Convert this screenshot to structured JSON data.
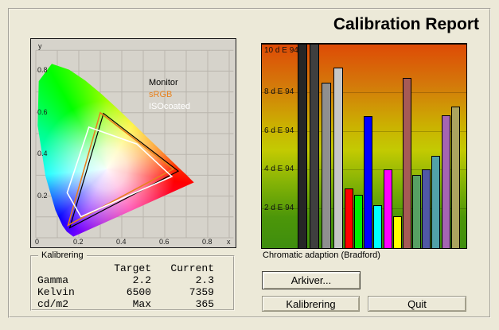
{
  "window": {
    "title": "Calibration Report"
  },
  "cie_diagram": {
    "x_axis_letter": "x",
    "y_axis_letter": "y",
    "origin_label": "0",
    "x_ticks": [
      "0.2",
      "0.4",
      "0.6",
      "0.8"
    ],
    "y_ticks": [
      "0.2",
      "0.4",
      "0.6",
      "0.8"
    ],
    "legend": [
      {
        "label": "Monitor",
        "color": "#000000"
      },
      {
        "label": "sRGB",
        "color": "#e8821e"
      },
      {
        "label": "ISOcoated",
        "color": "#ffffff"
      }
    ]
  },
  "chart_data": [
    {
      "type": "area",
      "title": "CIE 1931 xy chromaticity diagram with device gamuts",
      "xlabel": "x",
      "ylabel": "y",
      "xlim": [
        0,
        0.9
      ],
      "ylim": [
        0,
        0.9
      ],
      "xticks": [
        0.2,
        0.4,
        0.6,
        0.8
      ],
      "yticks": [
        0.2,
        0.4,
        0.6,
        0.8
      ],
      "grid": true,
      "legend_position": "upper-right",
      "series": [
        {
          "name": "Monitor",
          "color": "#000000",
          "stroke_width": 1.2,
          "points": [
            [
              0.315,
              0.597
            ],
            [
              0.663,
              0.32
            ],
            [
              0.158,
              0.048
            ]
          ]
        },
        {
          "name": "sRGB",
          "color": "#e8821e",
          "stroke_width": 1.6,
          "points": [
            [
              0.3,
              0.6
            ],
            [
              0.64,
              0.33
            ],
            [
              0.15,
              0.06
            ]
          ]
        },
        {
          "name": "ISOcoated",
          "color": "#ffffff",
          "stroke_width": 1.6,
          "points": [
            [
              0.247,
              0.531
            ],
            [
              0.47,
              0.45
            ],
            [
              0.633,
              0.294
            ],
            [
              0.21,
              0.101
            ],
            [
              0.146,
              0.216
            ]
          ]
        }
      ]
    },
    {
      "type": "bar",
      "ylabel": "d E 94",
      "ylim": [
        0,
        10.6
      ],
      "grid": true,
      "ytick_values": [
        10,
        8,
        6,
        4,
        2
      ],
      "ytick_labels": [
        "10 d E 94",
        "8 d E 94",
        "6 d E 94",
        "4 d E 94",
        "2 d E 94"
      ],
      "caption": "Chromatic adaption (Bradford)",
      "bars": [
        {
          "name": "black",
          "color": "#262626",
          "value": 10.6
        },
        {
          "name": "dark-gray",
          "color": "#3f3f3f",
          "value": 10.6
        },
        {
          "name": "gray",
          "color": "#8f8f8f",
          "value": 8.6
        },
        {
          "name": "light-gray",
          "color": "#c6c6c6",
          "value": 9.4
        },
        {
          "name": "red",
          "color": "#ff0000",
          "value": 3.1
        },
        {
          "name": "green",
          "color": "#00ee00",
          "value": 2.75
        },
        {
          "name": "blue",
          "color": "#0000ff",
          "value": 6.85
        },
        {
          "name": "cyan",
          "color": "#00ffff",
          "value": 2.25
        },
        {
          "name": "magenta",
          "color": "#ff00ff",
          "value": 4.1
        },
        {
          "name": "yellow",
          "color": "#ffff00",
          "value": 1.65
        },
        {
          "name": "brown",
          "color": "#a65a55",
          "value": 8.85
        },
        {
          "name": "sea-green",
          "color": "#57a063",
          "value": 3.8
        },
        {
          "name": "slate-blue",
          "color": "#5058a5",
          "value": 4.1
        },
        {
          "name": "cadet-blue",
          "color": "#51a1a8",
          "value": 4.8
        },
        {
          "name": "orchid",
          "color": "#a565b2",
          "value": 6.9
        },
        {
          "name": "khaki",
          "color": "#aba45e",
          "value": 7.35
        }
      ]
    }
  ],
  "calibration": {
    "group_label": "Kalibrering",
    "columns": [
      "Target",
      "Current"
    ],
    "rows": [
      {
        "label": "Gamma",
        "target": "2.2",
        "current": "2.3"
      },
      {
        "label": "Kelvin",
        "target": "6500",
        "current": "7359"
      },
      {
        "label": "cd/m2",
        "target": "Max",
        "current": "365"
      }
    ]
  },
  "buttons": {
    "archive": "Arkiver...",
    "calibrate": "Kalibrering",
    "quit": "Quit"
  }
}
